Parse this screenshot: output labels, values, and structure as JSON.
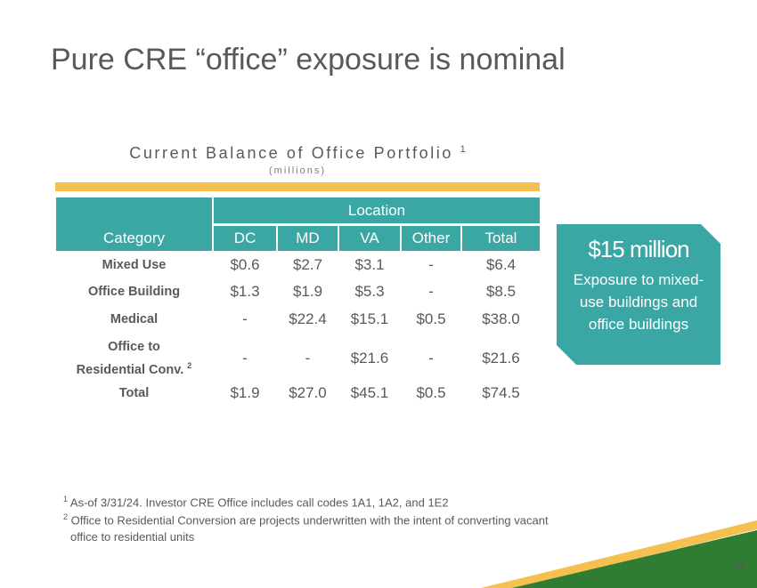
{
  "title": "Pure CRE “office” exposure is nominal",
  "table_title": "Current Balance of Office Portfolio",
  "table_title_note": "1",
  "table_units": "(millions)",
  "table": {
    "category_header": "Category",
    "location_header": "Location",
    "columns": [
      "DC",
      "MD",
      "VA",
      "Other",
      "Total"
    ],
    "rows": [
      {
        "category": "Mixed Use",
        "note": "",
        "values": [
          "$0.6",
          "$2.7",
          "$3.1",
          "-",
          "$6.4"
        ]
      },
      {
        "category": "Office Building",
        "note": "",
        "values": [
          "$1.3",
          "$1.9",
          "$5.3",
          "-",
          "$8.5"
        ]
      },
      {
        "category": "Medical",
        "note": "",
        "values": [
          "-",
          "$22.4",
          "$15.1",
          "$0.5",
          "$38.0"
        ]
      },
      {
        "category": "Office to Residential Conv.",
        "note": "2",
        "values": [
          "-",
          "-",
          "$21.6",
          "-",
          "$21.6"
        ]
      },
      {
        "category": "Total",
        "note": "",
        "values": [
          "$1.9",
          "$27.0",
          "$45.1",
          "$0.5",
          "$74.5"
        ]
      }
    ]
  },
  "callout": {
    "amount": "$15 million",
    "description": "Exposure to mixed-use buildings and office buildings"
  },
  "footnotes": [
    {
      "marker": "1",
      "text": "As-of 3/31/24. Investor CRE Office includes call codes 1A1, 1A2, and 1E2"
    },
    {
      "marker": "2",
      "text": "Office to Residential Conversion are projects underwritten with the intent of converting vacant"
    },
    {
      "marker": "",
      "text": "office to residential units"
    }
  ],
  "page_number": "36",
  "colors": {
    "teal": "#3ba7a5",
    "gold": "#f5c04f",
    "green": "#2e7d32",
    "text": "#595959"
  }
}
